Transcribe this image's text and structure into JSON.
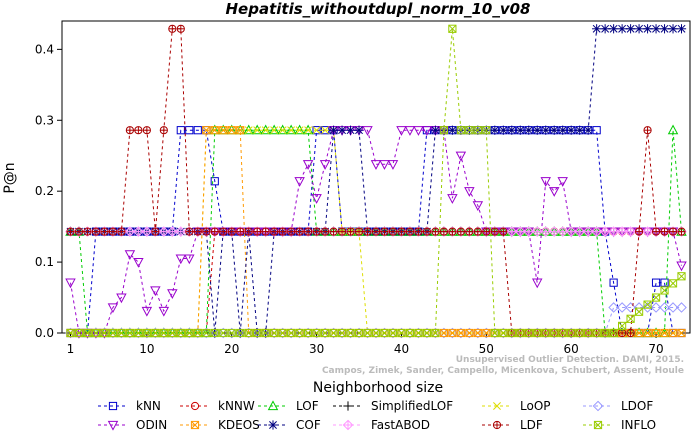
{
  "chart_data": {
    "type": "line",
    "title": "Hepatitis_withoutdupl_norm_10_v08",
    "xlabel": "Neighborhood size",
    "ylabel": "P@n",
    "xlim": [
      0,
      74
    ],
    "ylim": [
      0,
      0.44
    ],
    "x_ticks": [
      1,
      10,
      20,
      30,
      40,
      50,
      60,
      70
    ],
    "y_ticks": [
      0.0,
      0.1,
      0.2,
      0.3,
      0.4
    ],
    "y_tick_labels": [
      "0.0",
      "0.1",
      "0.2",
      "0.3",
      "0.4"
    ],
    "grid": false,
    "legend_position": "bottom",
    "x": [
      1,
      2,
      3,
      4,
      5,
      6,
      7,
      8,
      9,
      10,
      11,
      12,
      13,
      14,
      15,
      16,
      17,
      18,
      19,
      20,
      21,
      22,
      23,
      24,
      25,
      26,
      27,
      28,
      29,
      30,
      31,
      32,
      33,
      34,
      35,
      36,
      37,
      38,
      39,
      40,
      41,
      42,
      43,
      44,
      45,
      46,
      47,
      48,
      49,
      50,
      51,
      52,
      53,
      54,
      55,
      56,
      57,
      58,
      59,
      60,
      61,
      62,
      63,
      64,
      65,
      66,
      67,
      68,
      69,
      70,
      71,
      72,
      73
    ],
    "series": [
      {
        "name": "kNN",
        "color": "#0000cc",
        "marker": "square",
        "values": [
          0,
          0,
          0,
          0.143,
          0.143,
          0.143,
          0.143,
          0.143,
          0.143,
          0.143,
          0.143,
          0.143,
          0.143,
          0.286,
          0.286,
          0.286,
          0.286,
          0.214,
          0.143,
          0.143,
          0.143,
          0.143,
          0.143,
          0.143,
          0.143,
          0.143,
          0.143,
          0.143,
          0.143,
          0.286,
          0.286,
          0.286,
          0.143,
          0.143,
          0.143,
          0.143,
          0.143,
          0.143,
          0.143,
          0.143,
          0.143,
          0.143,
          0.286,
          0.286,
          0.286,
          0.286,
          0.286,
          0.286,
          0.286,
          0.286,
          0.286,
          0.286,
          0.286,
          0.286,
          0.286,
          0.286,
          0.286,
          0.286,
          0.286,
          0.286,
          0.286,
          0.286,
          0.286,
          0.143,
          0.071,
          0,
          0,
          0,
          0,
          0.071,
          0.071,
          0,
          0
        ]
      },
      {
        "name": "kNNW",
        "color": "#cc0000",
        "marker": "circle",
        "values": [
          0,
          0,
          0,
          0,
          0,
          0,
          0,
          0,
          0,
          0,
          0,
          0,
          0,
          0,
          0,
          0,
          0,
          0.143,
          0.143,
          0.143,
          0.143,
          0.143,
          0.143,
          0.143,
          0.143,
          0.143,
          0.143,
          0.143,
          0.143,
          0.143,
          0.143,
          0.143,
          0.143,
          0.143,
          0.143,
          0.143,
          0.143,
          0.143,
          0.143,
          0.143,
          0.143,
          0.143,
          0.143,
          0.143,
          0.143,
          0.143,
          0.143,
          0.143,
          0.143,
          0.143,
          0.143,
          0.143,
          0.143,
          0.143,
          0.143,
          0.143,
          0.143,
          0.143,
          0.143,
          0.143,
          0.143,
          0.143,
          0.143,
          0.143,
          0.143,
          0.143,
          0.143,
          0.143,
          0.143,
          0.143,
          0.143,
          0.143,
          0.143
        ]
      },
      {
        "name": "LOF",
        "color": "#00cc00",
        "marker": "triangle-up",
        "values": [
          0.143,
          0.143,
          0,
          0,
          0,
          0,
          0,
          0,
          0,
          0,
          0,
          0,
          0,
          0,
          0,
          0,
          0,
          0.286,
          0.286,
          0.286,
          0.286,
          0.286,
          0.286,
          0.286,
          0.286,
          0.286,
          0.286,
          0.286,
          0.286,
          0.143,
          0.143,
          0.143,
          0.143,
          0.143,
          0.143,
          0.143,
          0.143,
          0.143,
          0.143,
          0.143,
          0.143,
          0.143,
          0.143,
          0.143,
          0.143,
          0.143,
          0.143,
          0.143,
          0.143,
          0.143,
          0.143,
          0.143,
          0.143,
          0.143,
          0.143,
          0.143,
          0.143,
          0.143,
          0.143,
          0.143,
          0.143,
          0.143,
          0.143,
          0,
          0,
          0,
          0,
          0,
          0,
          0,
          0,
          0.286,
          0.143
        ]
      },
      {
        "name": "SimplifiedLOF",
        "color": "#000000",
        "marker": "plus",
        "values": [
          0.143,
          0.143,
          0.143,
          0.143,
          0.143,
          0.143,
          0.143,
          0.143,
          0.143,
          0.143,
          0.143,
          0.143,
          0.143,
          0.143,
          0.143,
          0.143,
          0.143,
          0.143,
          0.143,
          0.143,
          0.143,
          0.143,
          0.143,
          0.143,
          0.143,
          0.143,
          0.143,
          0.143,
          0.143,
          0.143,
          0.143,
          0.143,
          0.143,
          0.143,
          0.143,
          0.143,
          0.143,
          0.143,
          0.143,
          0.143,
          0.143,
          0.143,
          0.143,
          0.143,
          0.143,
          0.143,
          0.143,
          0.143,
          0.143,
          0.143,
          0.143,
          0.143,
          0.143,
          0.143,
          0.143,
          0.143,
          0.143,
          0.143,
          0.143,
          0.143,
          0.143,
          0.143,
          0.143,
          0.143,
          0.143,
          0.143,
          0.143,
          0.143,
          0.143,
          0.143,
          0.143,
          0.143,
          0.143
        ]
      },
      {
        "name": "LoOP",
        "color": "#dddd00",
        "marker": "x",
        "values": [
          0,
          0,
          0,
          0,
          0,
          0,
          0,
          0,
          0,
          0,
          0,
          0,
          0,
          0,
          0,
          0,
          0.286,
          0.286,
          0.286,
          0.286,
          0.286,
          0.286,
          0.286,
          0.286,
          0.286,
          0.286,
          0.286,
          0.286,
          0.286,
          0.286,
          0.286,
          0.286,
          0.143,
          0.143,
          0.143,
          0,
          0,
          0,
          0,
          0,
          0,
          0,
          0,
          0,
          0,
          0,
          0,
          0,
          0,
          0,
          0,
          0,
          0,
          0,
          0,
          0,
          0,
          0,
          0,
          0,
          0,
          0,
          0,
          0,
          0,
          0,
          0,
          0,
          0,
          0,
          0,
          0,
          0
        ]
      },
      {
        "name": "LDOF",
        "color": "#9999ff",
        "marker": "diamond",
        "values": [
          0,
          0,
          0,
          0,
          0,
          0,
          0,
          0,
          0,
          0,
          0,
          0,
          0,
          0,
          0,
          0,
          0,
          0,
          0,
          0,
          0,
          0,
          0,
          0,
          0,
          0,
          0,
          0,
          0,
          0,
          0,
          0,
          0,
          0,
          0,
          0,
          0,
          0,
          0,
          0,
          0,
          0,
          0,
          0,
          0,
          0,
          0,
          0,
          0,
          0,
          0,
          0,
          0,
          0,
          0,
          0,
          0,
          0,
          0,
          0,
          0,
          0,
          0,
          0,
          0.036,
          0.036,
          0.036,
          0.036,
          0.036,
          0.036,
          0.036,
          0.036,
          0.036
        ]
      },
      {
        "name": "ODIN",
        "color": "#9900cc",
        "marker": "triangle-down",
        "values": [
          0.071,
          0,
          0,
          0,
          0,
          0.036,
          0.05,
          0.111,
          0.1,
          0.031,
          0.06,
          0.031,
          0.056,
          0.105,
          0.105,
          0.143,
          0.143,
          0.143,
          0.143,
          0.143,
          0.143,
          0.143,
          0.143,
          0.143,
          0.143,
          0.143,
          0.143,
          0.214,
          0.238,
          0.19,
          0.238,
          0.286,
          0.286,
          0.286,
          0.286,
          0.286,
          0.238,
          0.238,
          0.238,
          0.286,
          0.286,
          0.286,
          0.286,
          0.286,
          0.286,
          0.19,
          0.25,
          0.2,
          0.18,
          0.143,
          0.143,
          0.143,
          0.143,
          0.143,
          0.143,
          0.071,
          0.214,
          0.2,
          0.214,
          0.143,
          0.143,
          0.143,
          0.143,
          0.143,
          0.143,
          0.143,
          0.143,
          0.143,
          0.143,
          0.143,
          0.143,
          0.143,
          0.095
        ]
      },
      {
        "name": "KDEOS",
        "color": "#ff9900",
        "marker": "square-x",
        "values": [
          0,
          0,
          0,
          0,
          0,
          0,
          0,
          0,
          0,
          0,
          0,
          0,
          0,
          0,
          0,
          0,
          0.286,
          0.286,
          0.286,
          0.286,
          0.286,
          0,
          0,
          0,
          0,
          0,
          0,
          0,
          0,
          0,
          0,
          0,
          0,
          0,
          0,
          0,
          0,
          0,
          0,
          0,
          0,
          0,
          0,
          0,
          0,
          0,
          0,
          0,
          0,
          0,
          0,
          0,
          0,
          0,
          0,
          0,
          0,
          0,
          0,
          0,
          0,
          0,
          0,
          0,
          0,
          0,
          0,
          0,
          0,
          0,
          0,
          0,
          0
        ]
      },
      {
        "name": "COF",
        "color": "#000080",
        "marker": "asterisk",
        "values": [
          0.143,
          0.143,
          0.143,
          0.143,
          0.143,
          0.143,
          0.143,
          0.143,
          0.143,
          0.143,
          0.143,
          0.143,
          0.143,
          0.143,
          0.143,
          0.143,
          0.143,
          0,
          0.143,
          0.143,
          0,
          0.143,
          0,
          0,
          0.143,
          0.143,
          0.143,
          0.143,
          0.143,
          0.143,
          0.143,
          0.286,
          0.286,
          0.286,
          0.286,
          0.143,
          0.143,
          0.143,
          0.143,
          0.143,
          0.143,
          0.143,
          0.143,
          0.286,
          0.286,
          0.286,
          0.286,
          0.286,
          0.286,
          0.286,
          0.286,
          0.286,
          0.286,
          0.286,
          0.286,
          0.286,
          0.286,
          0.286,
          0.286,
          0.286,
          0.286,
          0.286,
          0.429,
          0.429,
          0.429,
          0.429,
          0.429,
          0.429,
          0.429,
          0.429,
          0.429,
          0.429,
          0.429
        ]
      },
      {
        "name": "FastABOD",
        "color": "#ff99ff",
        "marker": "diamond-plus",
        "values": [
          0.143,
          0.143,
          0.143,
          0.143,
          0.143,
          0.143,
          0.143,
          0.143,
          0.143,
          0.143,
          0.143,
          0.143,
          0.143,
          0.143,
          0.143,
          0.143,
          0.143,
          0.143,
          0.143,
          0.143,
          0.143,
          0.143,
          0.143,
          0.143,
          0.143,
          0.143,
          0.143,
          0.143,
          0.143,
          0.143,
          0.143,
          0.143,
          0.143,
          0.143,
          0.143,
          0.143,
          0.143,
          0.143,
          0.143,
          0.143,
          0.143,
          0.143,
          0.143,
          0.143,
          0.143,
          0.143,
          0.143,
          0.143,
          0.143,
          0.143,
          0.143,
          0.143,
          0.143,
          0.143,
          0.143,
          0.143,
          0.143,
          0.143,
          0.143,
          0.143,
          0.143,
          0.143,
          0.143,
          0.143,
          0.143,
          0.143,
          0.143,
          0.143,
          0.143,
          0.143,
          0.143,
          0.143,
          0.143
        ]
      },
      {
        "name": "LDF",
        "color": "#aa0000",
        "marker": "circle-plus",
        "values": [
          0.143,
          0.143,
          0.143,
          0.143,
          0.143,
          0.143,
          0.143,
          0.286,
          0.286,
          0.286,
          0.143,
          0.286,
          0.429,
          0.429,
          0.143,
          0.143,
          0.143,
          0.143,
          0.143,
          0.143,
          0.143,
          0.143,
          0.143,
          0.143,
          0.143,
          0.143,
          0.143,
          0.143,
          0.143,
          0.143,
          0.143,
          0.143,
          0.143,
          0.143,
          0.143,
          0.143,
          0.143,
          0.143,
          0.143,
          0.143,
          0.143,
          0.143,
          0.143,
          0.143,
          0.143,
          0.143,
          0.143,
          0.143,
          0.143,
          0.143,
          0.143,
          0.143,
          0,
          0,
          0,
          0,
          0,
          0,
          0,
          0,
          0,
          0,
          0,
          0,
          0,
          0,
          0,
          0.143,
          0.286,
          0.143,
          0.143,
          0.143,
          0.143
        ]
      },
      {
        "name": "INFLO",
        "color": "#99cc00",
        "marker": "square-x",
        "values": [
          0,
          0,
          0,
          0,
          0,
          0,
          0,
          0,
          0,
          0,
          0,
          0,
          0,
          0,
          0,
          0,
          0,
          0,
          0,
          0,
          0,
          0,
          0,
          0,
          0,
          0,
          0,
          0,
          0,
          0,
          0,
          0,
          0,
          0,
          0,
          0,
          0,
          0,
          0,
          0,
          0,
          0,
          0,
          0,
          0.286,
          0.429,
          0.286,
          0.286,
          0.286,
          0.286,
          0,
          0,
          0,
          0,
          0,
          0,
          0,
          0,
          0,
          0,
          0,
          0,
          0,
          0,
          0,
          0.01,
          0.02,
          0.03,
          0.04,
          0.05,
          0.06,
          0.07,
          0.08
        ]
      }
    ]
  },
  "citation": {
    "line1": "Campos, Zimek, Sander, Campello, Micenkova, Schubert, Assent, Houle",
    "line2": "Unsupervised Outlier Detection. DAMI, 2015."
  }
}
